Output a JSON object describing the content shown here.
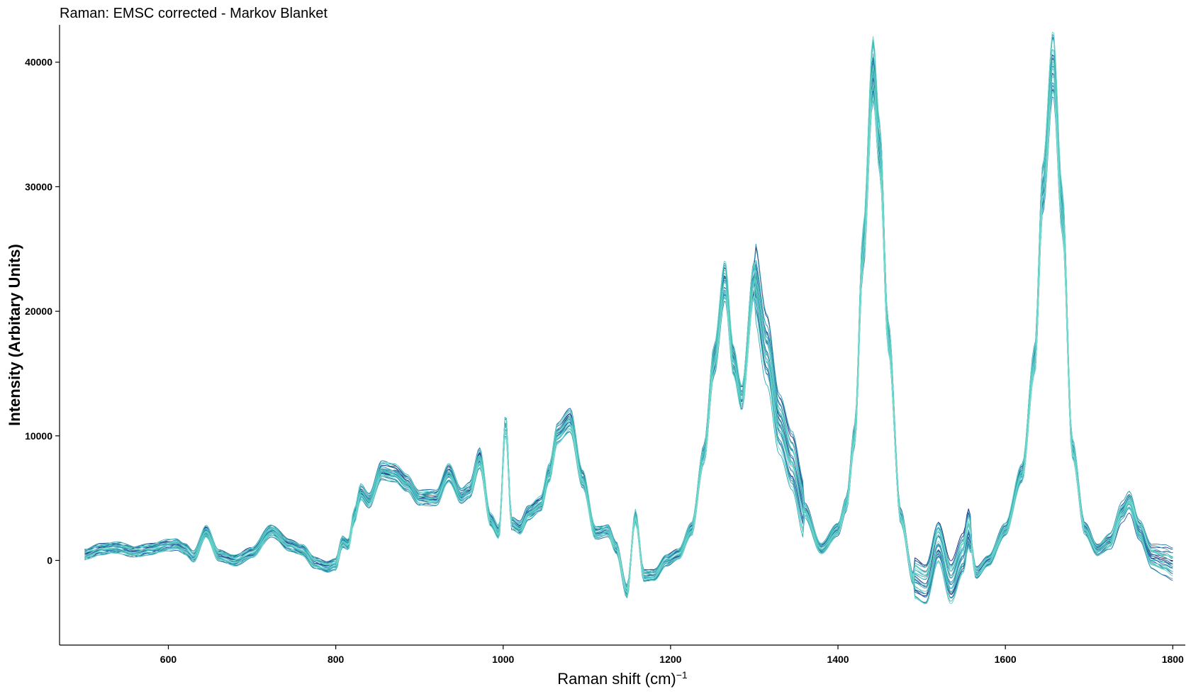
{
  "chart_data": {
    "type": "line",
    "title": "Raman: EMSC corrected - Markov Blanket",
    "xlabel": "Raman shift (cm)",
    "xlabel_superscript": "−1",
    "ylabel": "Intensity (Arbitary Units)",
    "xlim": [
      470,
      1815
    ],
    "ylim": [
      -6800,
      43000
    ],
    "x_ticks": [
      600,
      800,
      1000,
      1200,
      1400,
      1600,
      1800
    ],
    "x_tick_labels": [
      "600",
      "800",
      "1000",
      "1200",
      "1400",
      "1600",
      "1800"
    ],
    "y_ticks": [
      0,
      10000,
      20000,
      30000,
      40000
    ],
    "y_tick_labels": [
      "0",
      "10000",
      "20000",
      "30000",
      "40000"
    ],
    "grid": false,
    "legend": "none",
    "x_range_of_spectra": [
      500,
      1800
    ],
    "series_count": 30,
    "color_gradient": [
      "#1a1f6e",
      "#2c4a9a",
      "#2f7fb0",
      "#2fa8b4",
      "#4cc3bd",
      "#7fded0"
    ],
    "representative_profile": {
      "x": [
        500,
        520,
        540,
        560,
        580,
        600,
        610,
        620,
        630,
        645,
        660,
        680,
        700,
        723,
        745,
        760,
        775,
        790,
        800,
        808,
        815,
        822,
        830,
        840,
        855,
        870,
        885,
        900,
        920,
        935,
        950,
        960,
        972,
        985,
        995,
        1003,
        1010,
        1020,
        1030,
        1045,
        1055,
        1065,
        1080,
        1095,
        1110,
        1125,
        1135,
        1148,
        1158,
        1168,
        1180,
        1195,
        1210,
        1225,
        1240,
        1252,
        1265,
        1275,
        1285,
        1300,
        1315,
        1330,
        1345,
        1360,
        1380,
        1400,
        1410,
        1420,
        1430,
        1442,
        1450,
        1460,
        1475,
        1490,
        1505,
        1520,
        1535,
        1550,
        1556,
        1565,
        1580,
        1600,
        1620,
        1635,
        1645,
        1657,
        1668,
        1680,
        1695,
        1710,
        1725,
        1740,
        1748,
        1760,
        1775,
        1790,
        1800
      ],
      "y": [
        500,
        900,
        1000,
        700,
        900,
        1200,
        1300,
        900,
        300,
        2300,
        400,
        0,
        600,
        2400,
        1200,
        800,
        -200,
        -500,
        -300,
        1500,
        1200,
        3500,
        5500,
        4800,
        7200,
        7000,
        6200,
        5000,
        5000,
        7000,
        5200,
        5600,
        8200,
        3200,
        2200,
        11000,
        3000,
        2600,
        3800,
        4500,
        7000,
        10200,
        11200,
        6500,
        2200,
        2400,
        1000,
        -2500,
        3500,
        -1200,
        -1200,
        0,
        500,
        2500,
        8500,
        16000,
        22500,
        16000,
        13000,
        22500,
        17000,
        11000,
        8000,
        4000,
        900,
        2500,
        4500,
        10000,
        25000,
        39500,
        33000,
        18000,
        3500,
        -1500,
        -2000,
        1500,
        -1800,
        500,
        2500,
        -1000,
        0,
        2500,
        7000,
        16000,
        30000,
        40000,
        28000,
        9000,
        2500,
        800,
        1500,
        4000,
        4800,
        2500,
        300,
        0,
        -300
      ]
    }
  }
}
